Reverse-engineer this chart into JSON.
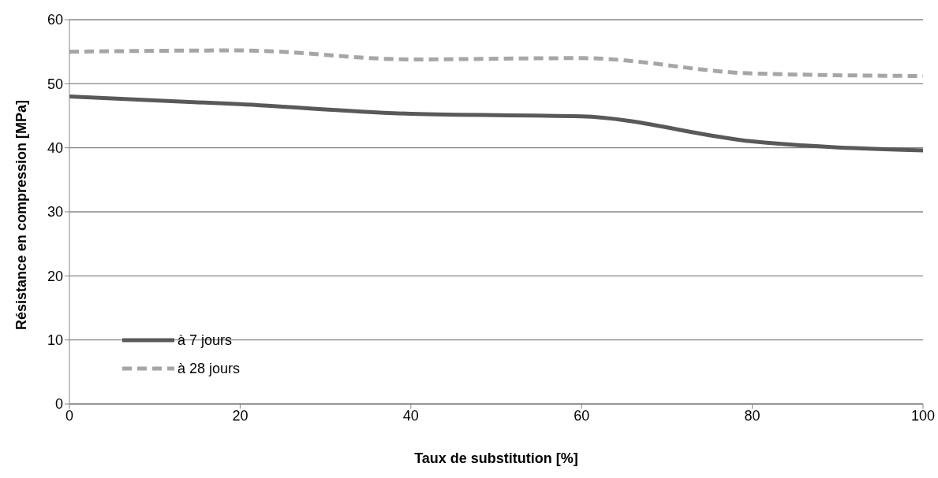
{
  "chart_data": {
    "type": "line",
    "xlabel": "Taux de substitution [%]",
    "ylabel": "Résistance en compression [MPa]",
    "x": [
      0,
      20,
      40,
      60,
      80,
      100
    ],
    "series": [
      {
        "name": "à 7 jours",
        "color": "#595959",
        "line_style": "solid",
        "values": [
          48.0,
          46.8,
          45.3,
          44.9,
          41.0,
          39.6
        ]
      },
      {
        "name": "à 28 jours",
        "color": "#a6a6a6",
        "line_style": "dashed",
        "values": [
          55.0,
          55.2,
          53.8,
          54.0,
          51.6,
          51.2
        ]
      }
    ],
    "xlim": [
      0,
      100
    ],
    "xticks": [
      0,
      20,
      40,
      60,
      80,
      100
    ],
    "ylim": [
      0,
      60
    ],
    "yticks": [
      0,
      10,
      20,
      30,
      40,
      50,
      60
    ],
    "grid": "y",
    "legend": "bottom left",
    "marker": "none"
  }
}
